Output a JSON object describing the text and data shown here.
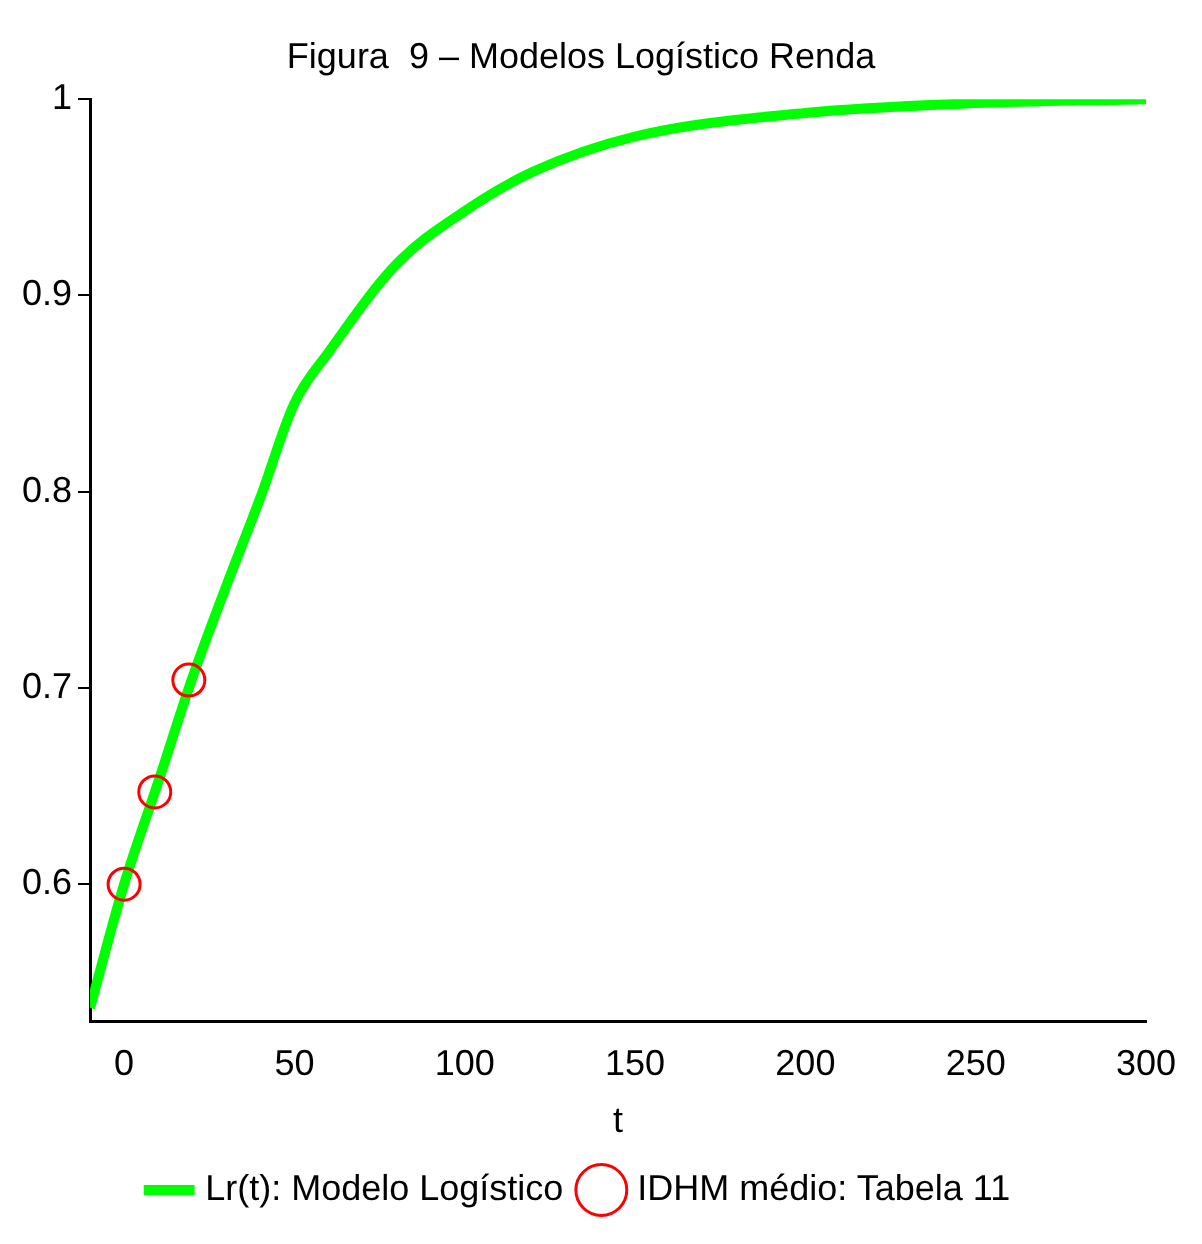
{
  "chart_data": {
    "type": "line",
    "title": "Figura  9 – Modelos Logístico Renda",
    "xlabel": "t",
    "xlim": [
      -10,
      300
    ],
    "xticks": [
      0,
      50,
      100,
      150,
      200,
      250,
      300
    ],
    "ylim": [
      0.53,
      1
    ],
    "yticks": [
      0.6,
      0.7,
      0.8,
      0.9,
      1
    ],
    "grid": false,
    "legend": "bottom",
    "series": [
      {
        "name": "Lr(t): Modelo Logístico",
        "color": "#00ff00",
        "marker": "none",
        "x": [
          -10,
          0,
          10,
          20,
          30,
          40,
          50,
          60,
          80,
          100,
          120,
          150,
          200,
          250,
          300
        ],
        "values": [
          0.537,
          0.6,
          0.652,
          0.705,
          0.752,
          0.797,
          0.845,
          0.871,
          0.916,
          0.943,
          0.963,
          0.981,
          0.993,
          0.998,
          1.0
        ]
      },
      {
        "name": "IDHM médio: Tabela 11",
        "type": "scatter",
        "color": "#ff0000",
        "marker": "circle",
        "x": [
          0,
          9,
          19
        ],
        "values": [
          0.6,
          0.647,
          0.704
        ]
      }
    ]
  }
}
